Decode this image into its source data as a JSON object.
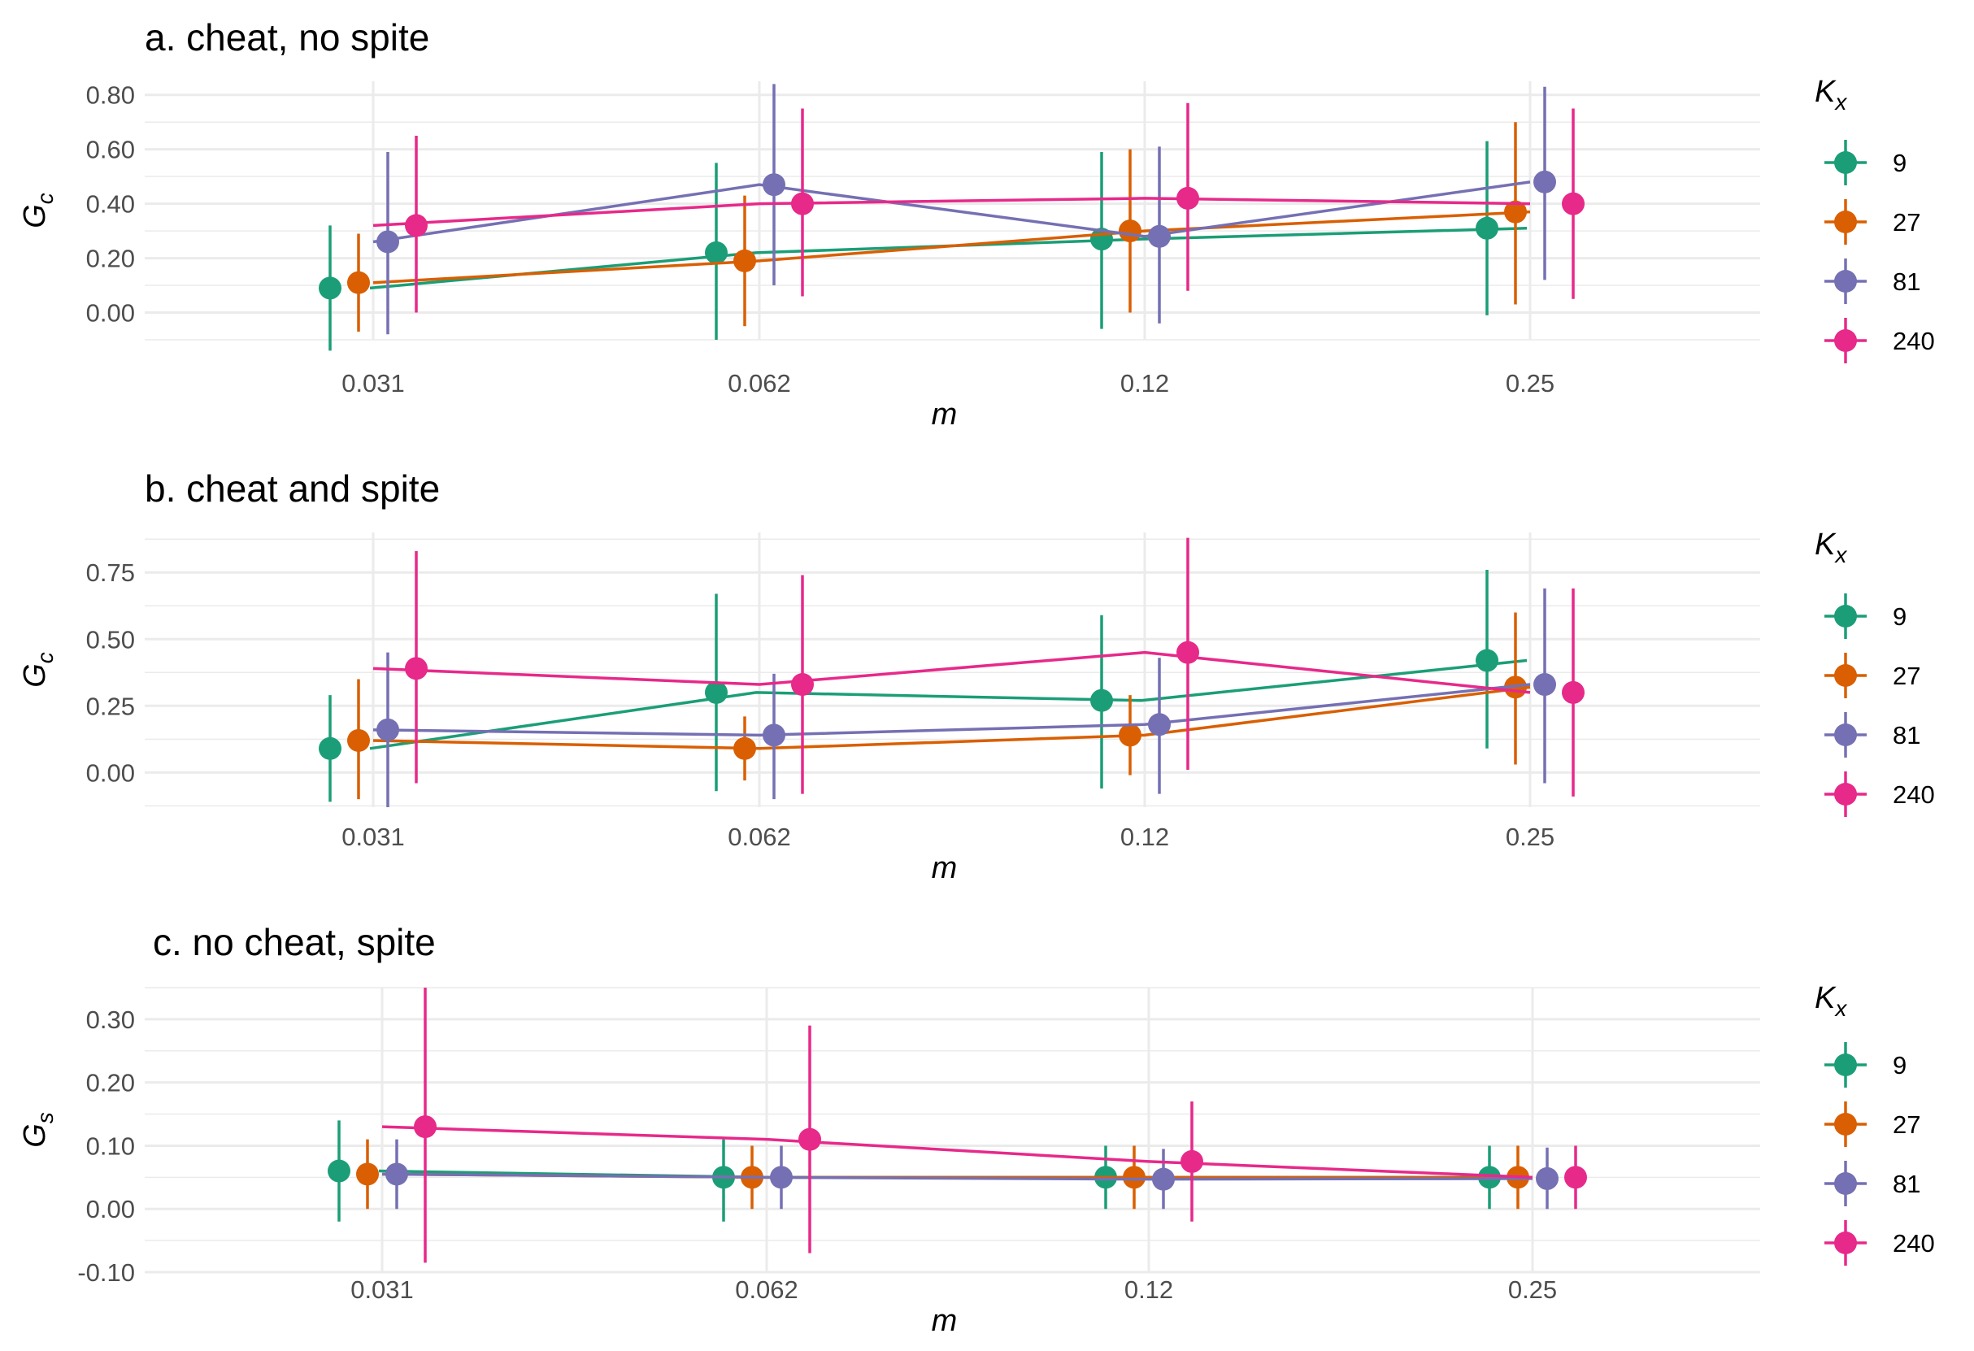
{
  "chart_data": [
    {
      "type": "line",
      "title": "a. cheat, no spite",
      "xlabel": "m",
      "ylabel_main": "G",
      "ylabel_sub": "c",
      "categories": [
        "0.031",
        "0.062",
        "0.12",
        "0.25"
      ],
      "y_ticks": [
        "0.00",
        "0.20",
        "0.40",
        "0.60",
        "0.80"
      ],
      "y_tick_values": [
        0,
        0.2,
        0.4,
        0.6,
        0.8
      ],
      "ylim": [
        -0.1,
        0.85
      ],
      "grid": true,
      "legend": {
        "title_main": "K",
        "title_sub": "x",
        "placement": "right"
      },
      "series": [
        {
          "name": "9",
          "color": "#1b9e77",
          "values": [
            0.09,
            0.22,
            0.27,
            0.31
          ],
          "lower": [
            -0.14,
            -0.1,
            -0.06,
            -0.01
          ],
          "upper": [
            0.32,
            0.55,
            0.59,
            0.63
          ]
        },
        {
          "name": "27",
          "color": "#d95f02",
          "values": [
            0.11,
            0.19,
            0.3,
            0.37
          ],
          "lower": [
            -0.07,
            -0.05,
            0.0,
            0.03
          ],
          "upper": [
            0.29,
            0.43,
            0.6,
            0.7
          ]
        },
        {
          "name": "81",
          "color": "#7570b3",
          "values": [
            0.26,
            0.47,
            0.28,
            0.48
          ],
          "lower": [
            -0.08,
            0.1,
            -0.04,
            0.12
          ],
          "upper": [
            0.59,
            0.84,
            0.61,
            0.83
          ]
        },
        {
          "name": "240",
          "color": "#e7298a",
          "values": [
            0.32,
            0.4,
            0.42,
            0.4
          ],
          "lower": [
            0.0,
            0.06,
            0.08,
            0.05
          ],
          "upper": [
            0.65,
            0.75,
            0.77,
            0.75
          ]
        }
      ]
    },
    {
      "type": "line",
      "title": "b. cheat and spite",
      "xlabel": "m",
      "ylabel_main": "G",
      "ylabel_sub": "c",
      "categories": [
        "0.031",
        "0.062",
        "0.12",
        "0.25"
      ],
      "y_ticks": [
        "0.00",
        "0.25",
        "0.50",
        "0.75"
      ],
      "y_tick_values": [
        0,
        0.25,
        0.5,
        0.75
      ],
      "ylim": [
        -0.13,
        0.9
      ],
      "grid": true,
      "legend": {
        "title_main": "K",
        "title_sub": "x",
        "placement": "right"
      },
      "series": [
        {
          "name": "9",
          "color": "#1b9e77",
          "values": [
            0.09,
            0.3,
            0.27,
            0.42
          ],
          "lower": [
            -0.11,
            -0.07,
            -0.06,
            0.09
          ],
          "upper": [
            0.29,
            0.67,
            0.59,
            0.76
          ]
        },
        {
          "name": "27",
          "color": "#d95f02",
          "values": [
            0.12,
            0.09,
            0.14,
            0.32
          ],
          "lower": [
            -0.1,
            -0.03,
            -0.01,
            0.03
          ],
          "upper": [
            0.35,
            0.21,
            0.29,
            0.6
          ]
        },
        {
          "name": "81",
          "color": "#7570b3",
          "values": [
            0.16,
            0.14,
            0.18,
            0.33
          ],
          "lower": [
            -0.13,
            -0.1,
            -0.08,
            -0.04
          ],
          "upper": [
            0.45,
            0.37,
            0.43,
            0.69
          ]
        },
        {
          "name": "240",
          "color": "#e7298a",
          "values": [
            0.39,
            0.33,
            0.45,
            0.3
          ],
          "lower": [
            -0.04,
            -0.08,
            0.01,
            -0.09
          ],
          "upper": [
            0.83,
            0.74,
            0.88,
            0.69
          ]
        }
      ]
    },
    {
      "type": "line",
      "title": "c. no cheat, spite",
      "xlabel": "m",
      "ylabel_main": "G",
      "ylabel_sub": "s",
      "categories": [
        "0.031",
        "0.062",
        "0.12",
        "0.25"
      ],
      "y_ticks": [
        "-0.10",
        "0.00",
        "0.10",
        "0.20",
        "0.30"
      ],
      "y_tick_values": [
        -0.1,
        0,
        0.1,
        0.2,
        0.3
      ],
      "ylim": [
        -0.1,
        0.35
      ],
      "grid": true,
      "legend": {
        "title_main": "K",
        "title_sub": "x",
        "placement": "right"
      },
      "series": [
        {
          "name": "9",
          "color": "#1b9e77",
          "values": [
            0.06,
            0.05,
            0.05,
            0.05
          ],
          "lower": [
            -0.02,
            -0.02,
            0.0,
            0.0
          ],
          "upper": [
            0.14,
            0.11,
            0.1,
            0.1
          ]
        },
        {
          "name": "27",
          "color": "#d95f02",
          "values": [
            0.055,
            0.05,
            0.05,
            0.05
          ],
          "lower": [
            0.0,
            0.0,
            0.0,
            0.0
          ],
          "upper": [
            0.11,
            0.1,
            0.1,
            0.1
          ]
        },
        {
          "name": "81",
          "color": "#7570b3",
          "values": [
            0.055,
            0.05,
            0.047,
            0.048
          ],
          "lower": [
            0.0,
            0.0,
            0.0,
            0.0
          ],
          "upper": [
            0.11,
            0.1,
            0.095,
            0.097
          ]
        },
        {
          "name": "240",
          "color": "#e7298a",
          "values": [
            0.13,
            0.11,
            0.075,
            0.05
          ],
          "lower": [
            -0.085,
            -0.07,
            -0.02,
            0.0
          ],
          "upper": [
            0.35,
            0.29,
            0.17,
            0.1
          ]
        }
      ]
    }
  ]
}
